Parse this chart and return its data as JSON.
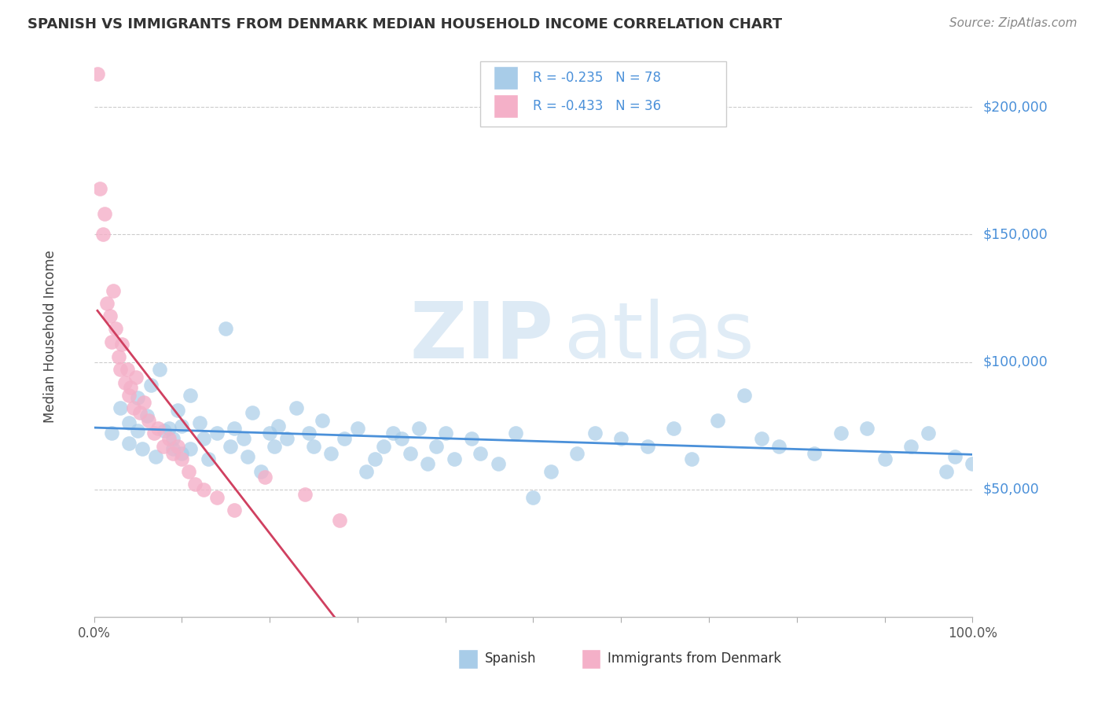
{
  "title": "SPANISH VS IMMIGRANTS FROM DENMARK MEDIAN HOUSEHOLD INCOME CORRELATION CHART",
  "source": "Source: ZipAtlas.com",
  "ylabel": "Median Household Income",
  "xlim": [
    0,
    1.0
  ],
  "ylim": [
    0,
    220000
  ],
  "ytick_values": [
    50000,
    100000,
    150000,
    200000
  ],
  "ytick_labels": [
    "$50,000",
    "$100,000",
    "$150,000",
    "$200,000"
  ],
  "legend_r1": "R = -0.235",
  "legend_n1": "N = 78",
  "legend_r2": "R = -0.433",
  "legend_n2": "N = 36",
  "blue_scatter_color": "#a8cce8",
  "pink_scatter_color": "#f4b0c8",
  "blue_line_color": "#4a90d9",
  "pink_line_color": "#d04060",
  "text_color": "#4a90d9",
  "title_color": "#333333",
  "grid_color": "#cccccc",
  "spanish_x": [
    0.02,
    0.03,
    0.04,
    0.04,
    0.05,
    0.05,
    0.055,
    0.06,
    0.065,
    0.07,
    0.075,
    0.08,
    0.085,
    0.09,
    0.09,
    0.095,
    0.1,
    0.1,
    0.11,
    0.11,
    0.12,
    0.125,
    0.13,
    0.14,
    0.15,
    0.155,
    0.16,
    0.17,
    0.175,
    0.18,
    0.19,
    0.2,
    0.205,
    0.21,
    0.22,
    0.23,
    0.245,
    0.25,
    0.26,
    0.27,
    0.285,
    0.3,
    0.31,
    0.32,
    0.33,
    0.34,
    0.35,
    0.36,
    0.37,
    0.38,
    0.39,
    0.4,
    0.41,
    0.43,
    0.44,
    0.46,
    0.48,
    0.5,
    0.52,
    0.55,
    0.57,
    0.6,
    0.63,
    0.66,
    0.68,
    0.71,
    0.74,
    0.76,
    0.78,
    0.82,
    0.85,
    0.88,
    0.9,
    0.93,
    0.95,
    0.97,
    0.98,
    1.0
  ],
  "spanish_y": [
    72000,
    82000,
    68000,
    76000,
    86000,
    73000,
    66000,
    79000,
    91000,
    63000,
    97000,
    73000,
    74000,
    70000,
    66000,
    81000,
    64000,
    75000,
    66000,
    87000,
    76000,
    70000,
    62000,
    72000,
    113000,
    67000,
    74000,
    70000,
    63000,
    80000,
    57000,
    72000,
    67000,
    75000,
    70000,
    82000,
    72000,
    67000,
    77000,
    64000,
    70000,
    74000,
    57000,
    62000,
    67000,
    72000,
    70000,
    64000,
    74000,
    60000,
    67000,
    72000,
    62000,
    70000,
    64000,
    60000,
    72000,
    47000,
    57000,
    64000,
    72000,
    70000,
    67000,
    74000,
    62000,
    77000,
    87000,
    70000,
    67000,
    64000,
    72000,
    74000,
    62000,
    67000,
    72000,
    57000,
    63000,
    60000
  ],
  "denmark_x": [
    0.004,
    0.007,
    0.01,
    0.012,
    0.015,
    0.018,
    0.02,
    0.022,
    0.025,
    0.028,
    0.03,
    0.032,
    0.035,
    0.038,
    0.04,
    0.042,
    0.045,
    0.048,
    0.052,
    0.057,
    0.062,
    0.068,
    0.073,
    0.079,
    0.085,
    0.09,
    0.095,
    0.1,
    0.108,
    0.115,
    0.125,
    0.14,
    0.16,
    0.195,
    0.24,
    0.28
  ],
  "denmark_y": [
    213000,
    168000,
    150000,
    158000,
    123000,
    118000,
    108000,
    128000,
    113000,
    102000,
    97000,
    107000,
    92000,
    97000,
    87000,
    90000,
    82000,
    94000,
    80000,
    84000,
    77000,
    72000,
    74000,
    67000,
    70000,
    64000,
    67000,
    62000,
    57000,
    52000,
    50000,
    47000,
    42000,
    55000,
    48000,
    38000
  ]
}
